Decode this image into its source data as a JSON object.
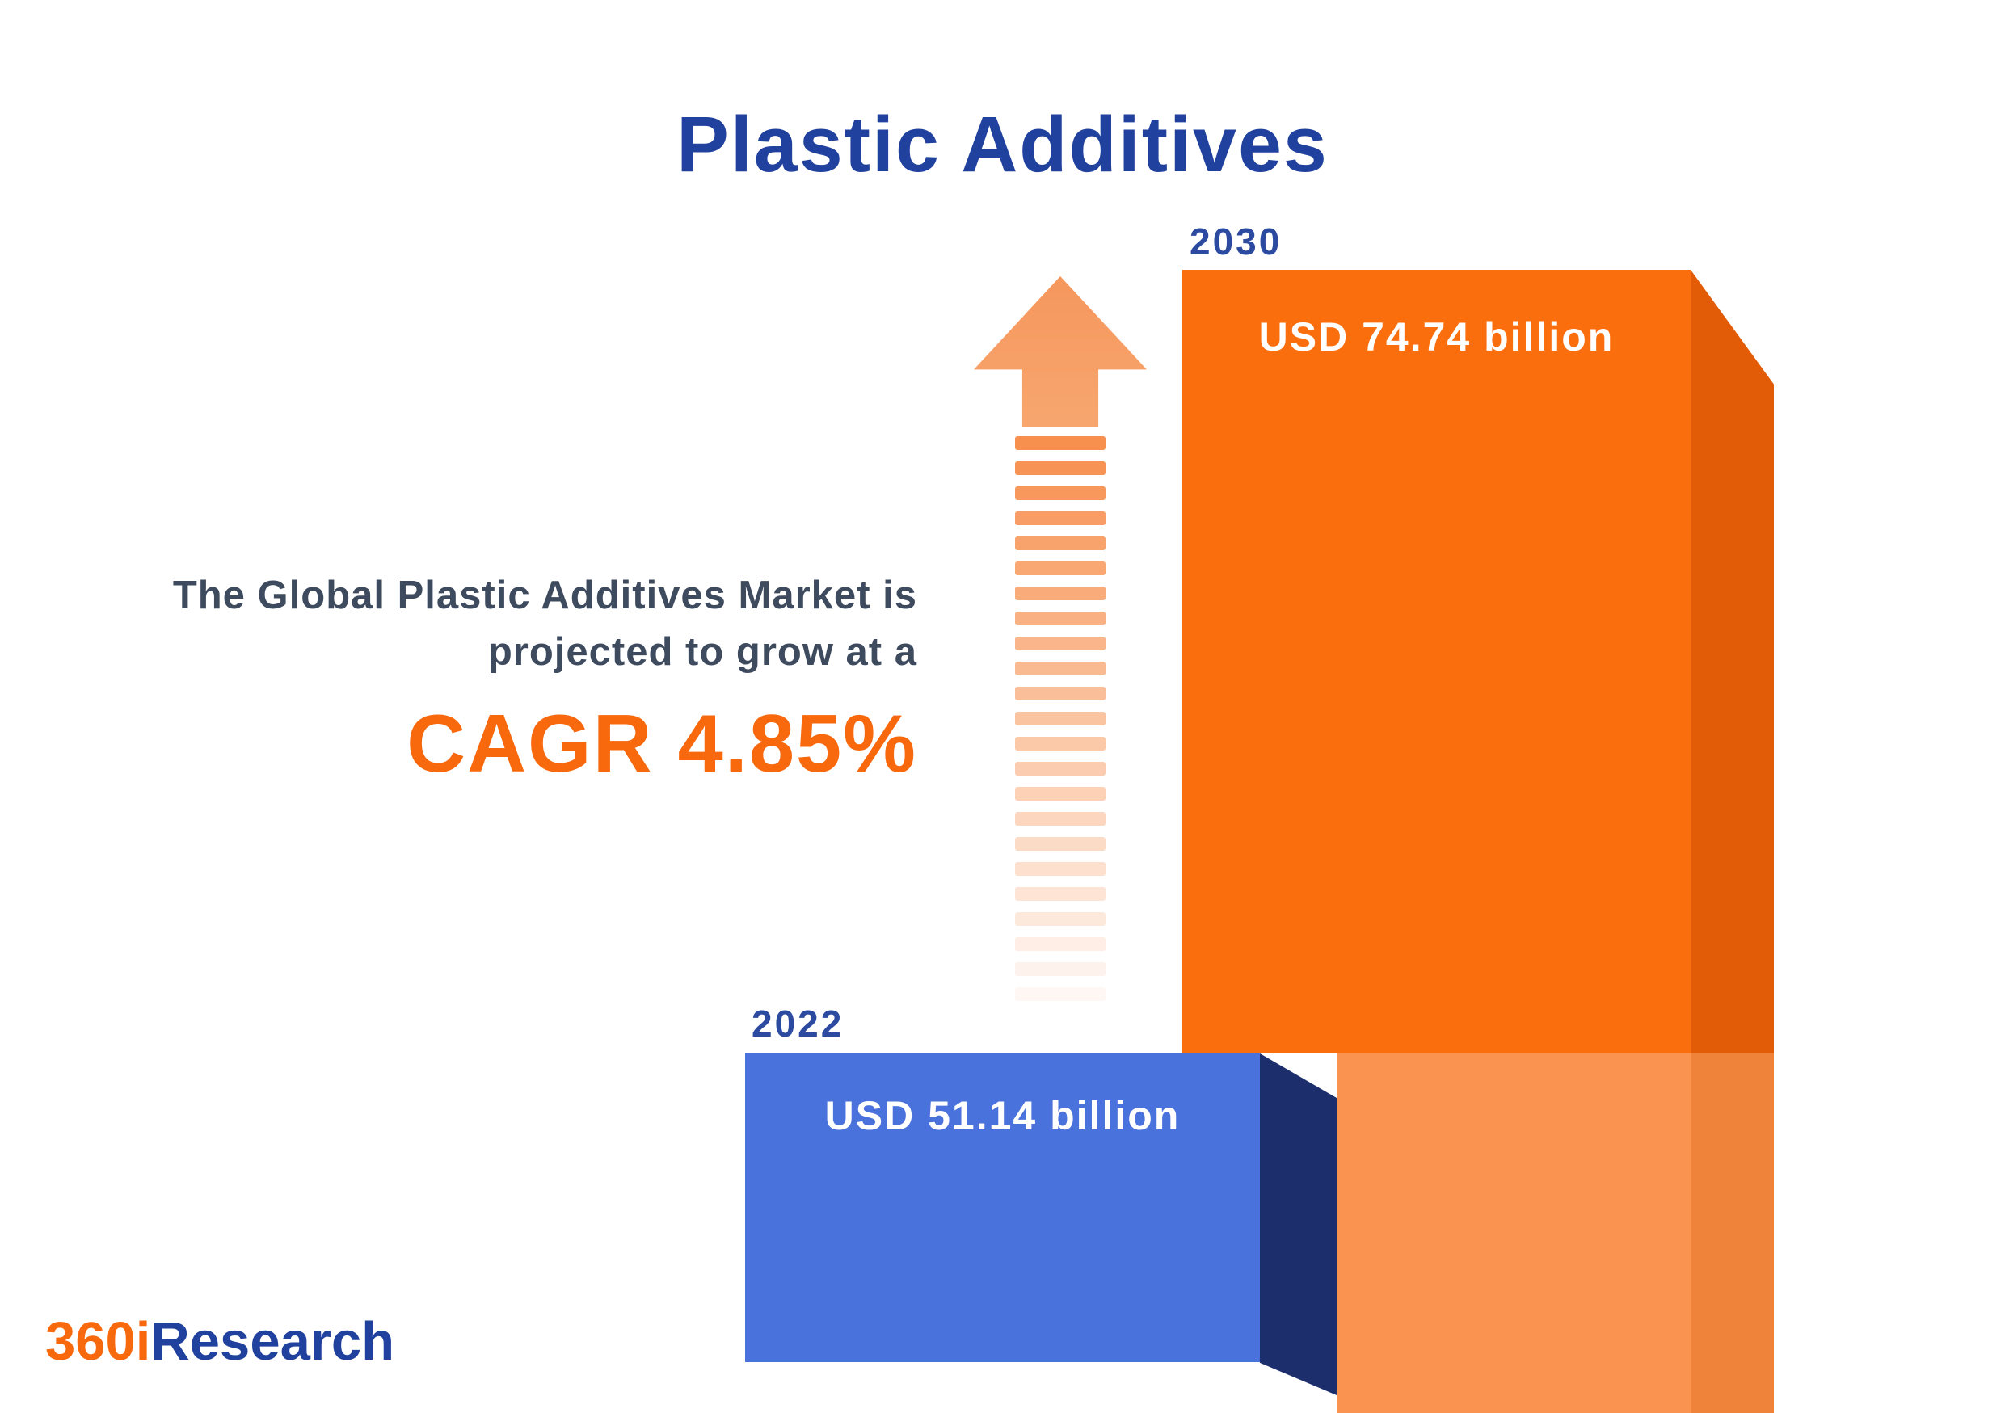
{
  "title": "Plastic Additives",
  "intro": {
    "line1": "The Global Plastic Additives Market is",
    "line2": "projected to grow at a",
    "cagr": "CAGR 4.85%"
  },
  "logo": {
    "orange": "360i",
    "blue": "Research"
  },
  "chart_data": {
    "type": "bar",
    "categories": [
      "2022",
      "2030"
    ],
    "values": [
      51.14,
      74.74
    ],
    "value_labels": [
      "USD 51.14 billion",
      "USD 74.74 billion"
    ],
    "unit": "USD billion",
    "cagr_percent": 4.85,
    "title": "Plastic Additives",
    "xlabel": "",
    "ylabel": "",
    "legend_position": "none",
    "grid": false,
    "bar_colors": [
      "#4a72dc",
      "#fa6e0e"
    ],
    "annotations": [
      "The Global Plastic Additives Market is projected to grow at a CAGR 4.85%"
    ]
  },
  "colors": {
    "title_blue": "#21419e",
    "year_label_blue": "#2b4aa0",
    "text_dark": "#3e4a5e",
    "accent_orange": "#f8680d",
    "bar_2030_front": "#fa6e0e",
    "bar_2030_side": "#e25c07",
    "bar_2030_base_light": "#fb9350",
    "bar_2030_base_side": "#ef8339",
    "bar_2022_front": "#4a72dc",
    "bar_2022_side": "#1c2e6b",
    "arrow_orange": "#f78f4e",
    "value_text": "#ffffff"
  }
}
